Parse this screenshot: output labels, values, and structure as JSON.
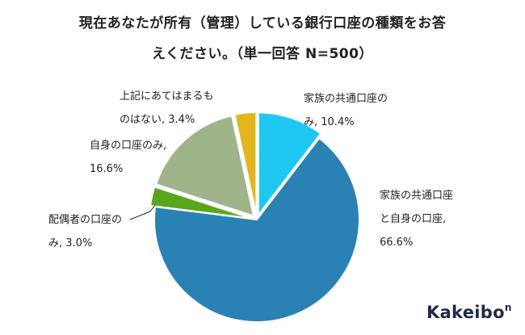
{
  "title": {
    "line1": "現在あなたが所有（管理）している銀行口座の種類をお答",
    "line2": "えください。（単一回答 N=500）"
  },
  "logo": {
    "text": "Kakeibo",
    "suffix": "n"
  },
  "chart_data": {
    "type": "pie",
    "title": "現在あなたが所有（管理）している銀行口座の種類をお答えください。（単一回答 N=500）",
    "unit": "%",
    "slices": [
      {
        "label": "家族の共通口座のみ",
        "value": 10.4,
        "color": "#1ec8f2",
        "label_lines": [
          "家族の共通口座の",
          "み, 10.4%"
        ]
      },
      {
        "label": "家族の共通口座と自身の口座",
        "value": 66.6,
        "color": "#2a82b4",
        "label_lines": [
          "家族の共通口座",
          "と自身の口座,",
          "66.6%"
        ]
      },
      {
        "label": "配偶者の口座のみ",
        "value": 3.0,
        "color": "#5aa51a",
        "label_lines": [
          "配偶者の口座の",
          "み, 3.0%"
        ]
      },
      {
        "label": "自身の口座のみ",
        "value": 16.6,
        "color": "#a0b48a",
        "label_lines": [
          "自身の口座のみ,",
          "16.6%"
        ]
      },
      {
        "label": "上記にあてはまるものはない",
        "value": 3.4,
        "color": "#e3b51e",
        "label_lines": [
          "上記にあてはまるも",
          "のはない, 3.4%"
        ]
      }
    ]
  }
}
